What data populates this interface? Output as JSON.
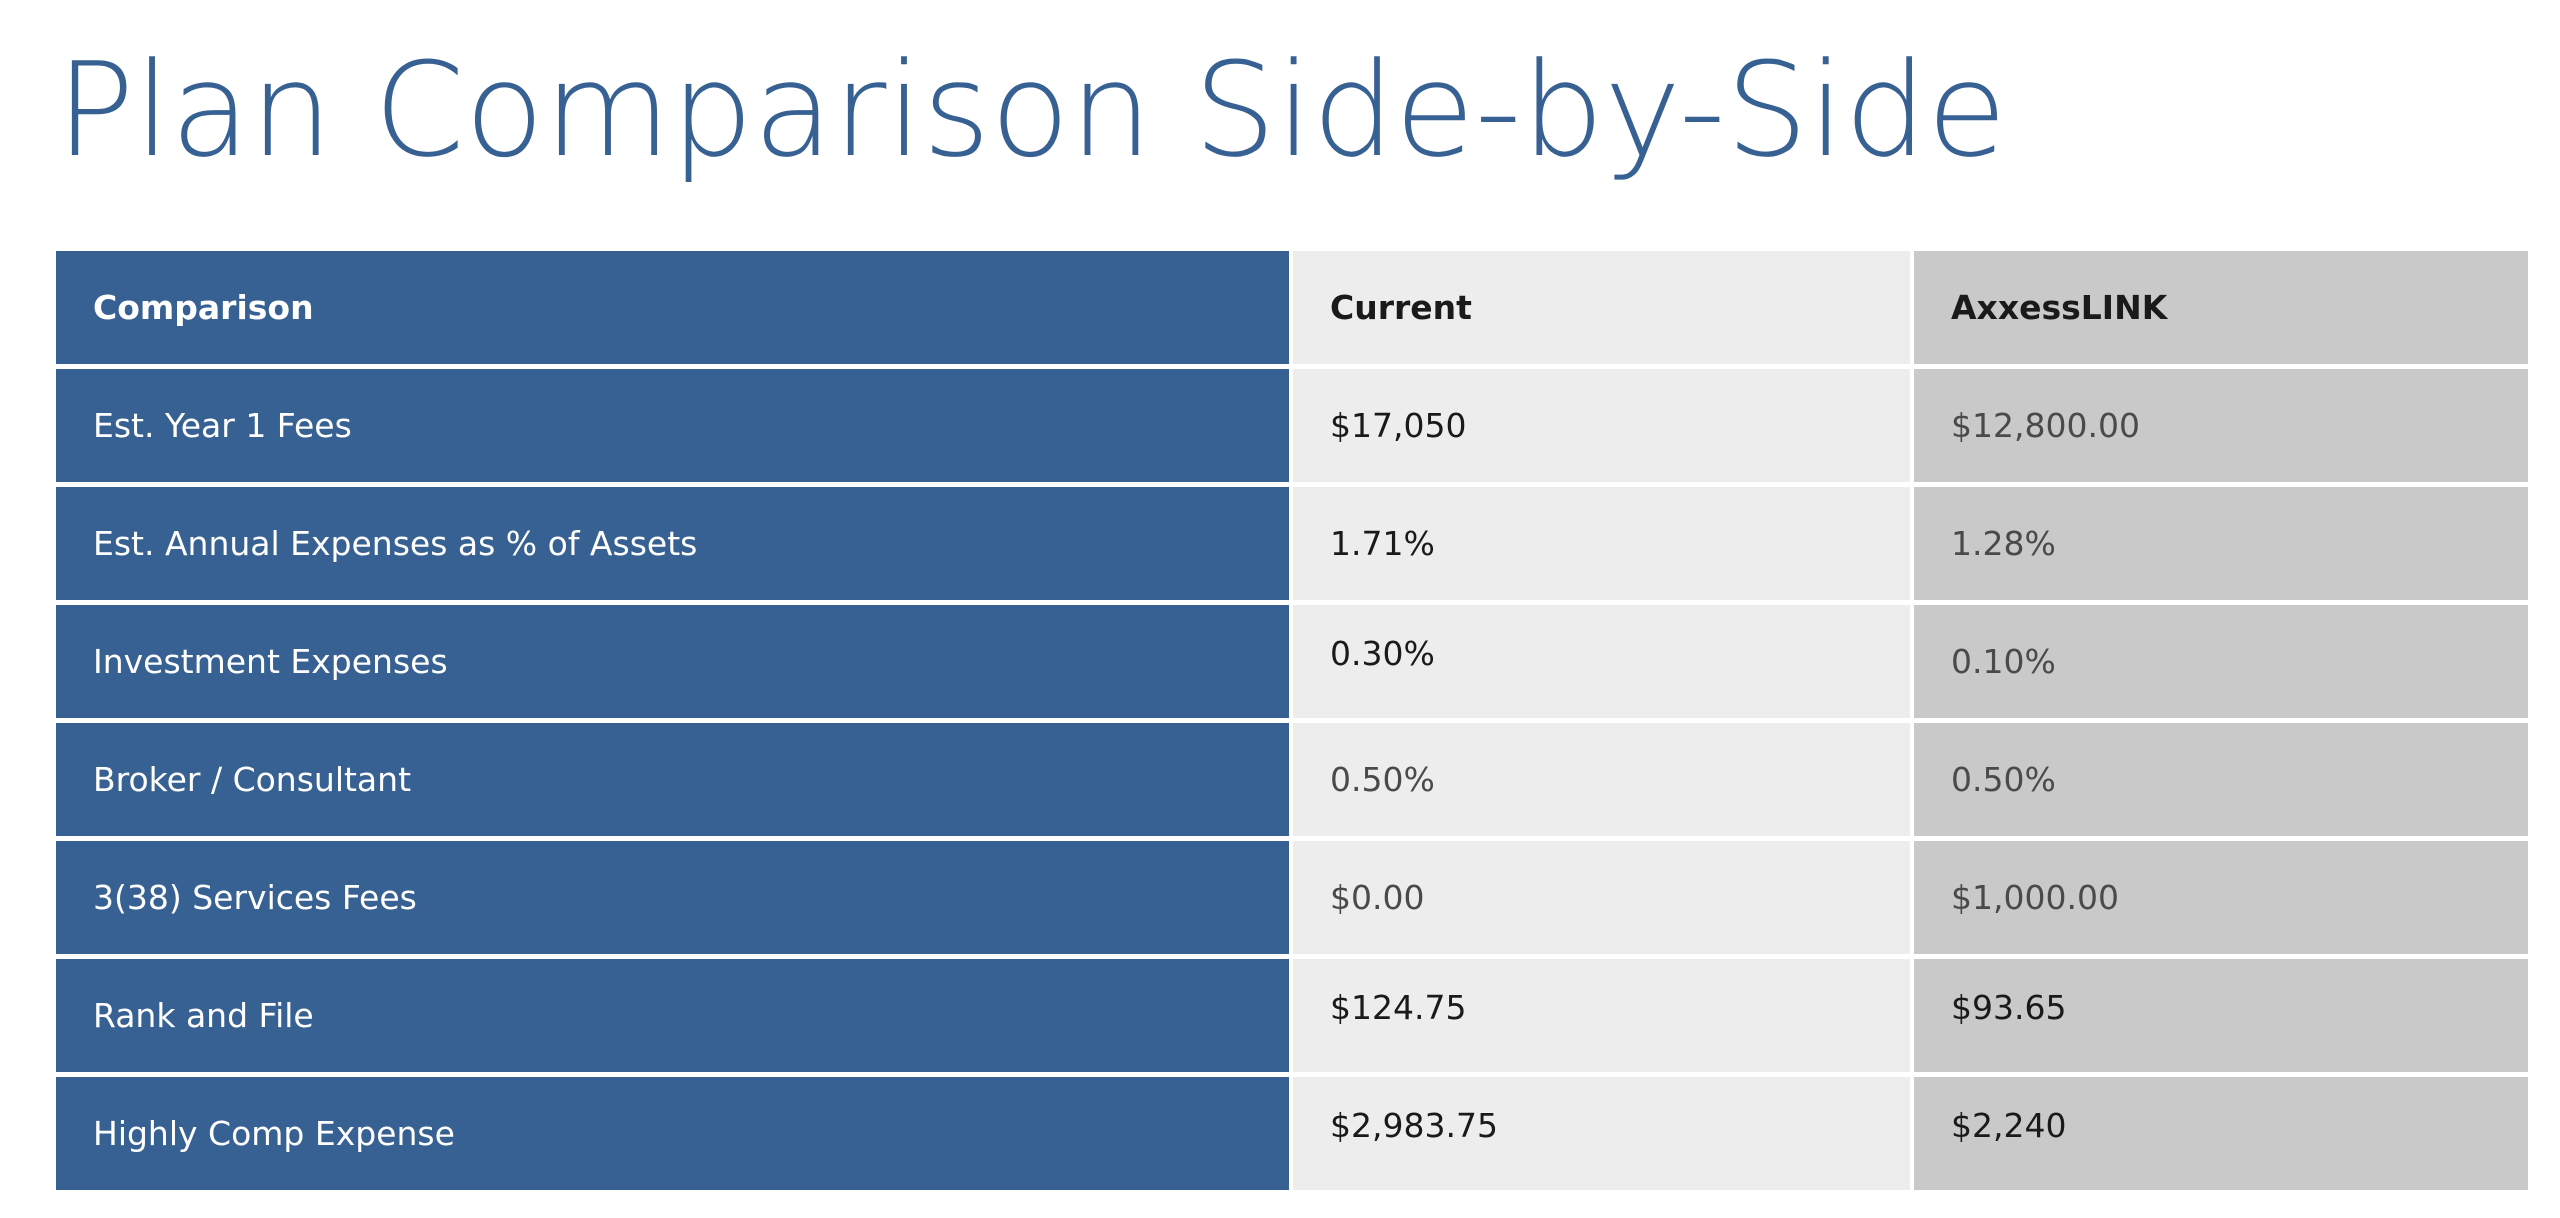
{
  "title": "Plan Comparison Side-by-Side",
  "table": {
    "headers": [
      "Comparison",
      "Current",
      "AxxessLINK"
    ],
    "rows": [
      {
        "label": "Est. Year 1 Fees",
        "current": "$17,050",
        "axxess": "$12,800.00"
      },
      {
        "label": "Est. Annual Expenses as % of Assets",
        "current": "1.71%",
        "axxess": "1.28%"
      },
      {
        "label": "Investment Expenses",
        "current": "0.30%",
        "axxess": "0.10%"
      },
      {
        "label": "Broker / Consultant",
        "current": "0.50%",
        "axxess": "0.50%"
      },
      {
        "label": "3(38) Services Fees",
        "current": "$0.00",
        "axxess": "$1,000.00"
      },
      {
        "label": "Rank and File",
        "current": "$124.75",
        "axxess": "$93.65"
      },
      {
        "label": "Highly Comp Expense",
        "current": "$2,983.75",
        "axxess": "$2,240"
      }
    ]
  },
  "colors": {
    "title": "#386193",
    "label_column_bg": "#386193",
    "current_column_bg": "#ededed",
    "axxess_column_bg": "#c9c9c9"
  }
}
